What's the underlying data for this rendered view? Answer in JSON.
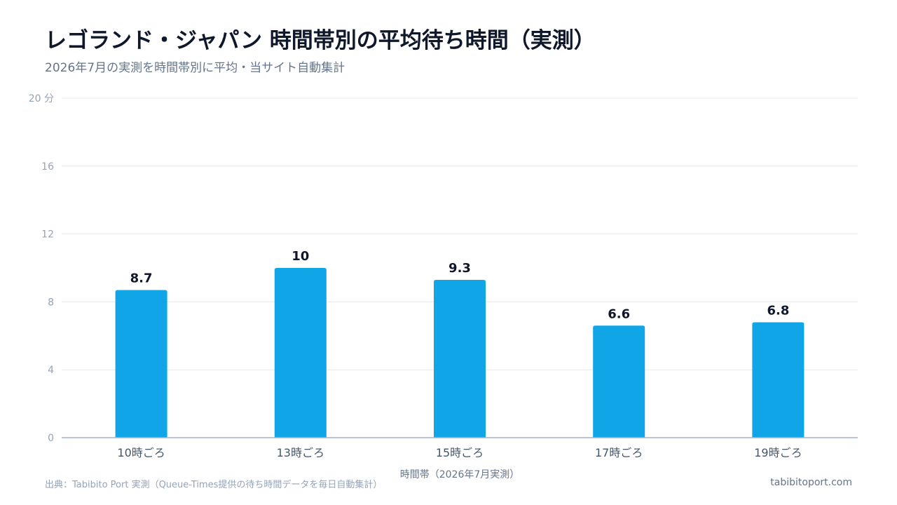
{
  "header": {
    "title": "レゴランド・ジャパン 時間帯別の平均待ち時間（実測）",
    "subtitle": "2026年7月の実測を時間帯別に平均・当サイト自動集計"
  },
  "chart_data": {
    "type": "bar",
    "title": "レゴランド・ジャパン 時間帯別の平均待ち時間（実測）",
    "subtitle": "2026年7月の実測を時間帯別に平均・当サイト自動集計",
    "categories": [
      "10時ごろ",
      "13時ごろ",
      "15時ごろ",
      "17時ごろ",
      "19時ごろ"
    ],
    "values": [
      8.7,
      10,
      9.3,
      6.6,
      6.8
    ],
    "xlabel": "時間帯（2026年7月実測）",
    "ylabel": "",
    "ylim": [
      0,
      20
    ],
    "yticks": [
      0,
      4,
      8,
      12,
      16,
      20
    ],
    "ytick_labels": [
      "0",
      "4",
      "8",
      "12",
      "16",
      "20 分"
    ],
    "grid": true,
    "legend": "none",
    "bar_color": "#10a5e6"
  },
  "footer": {
    "source": "出典：Tabibito Port 実測（Queue-Times提供の待ち時間データを毎日自動集計）",
    "site": "tabibitoport.com"
  }
}
